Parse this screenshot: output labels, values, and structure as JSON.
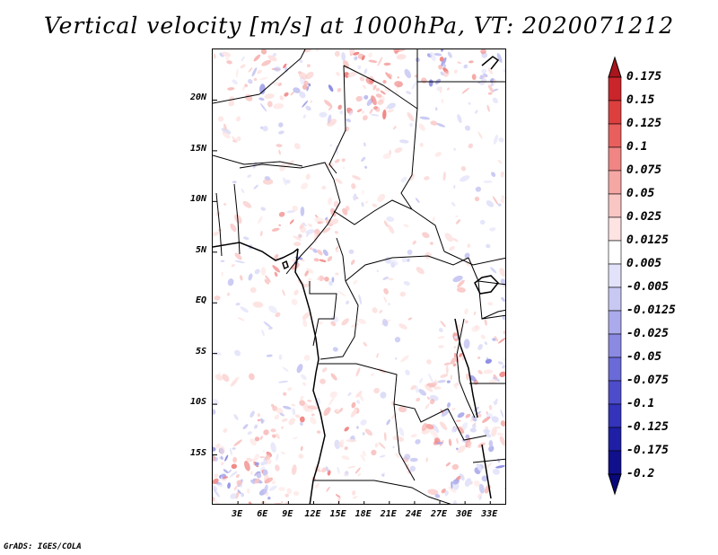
{
  "title": "Vertical velocity [m/s] at 1000hPa, VT: 2020071212",
  "footer": "GrADS: IGES/COLA",
  "map": {
    "lat_labels": [
      "20N",
      "15N",
      "10N",
      "5N",
      "EQ",
      "5S",
      "10S",
      "15S"
    ],
    "lon_labels": [
      "3E",
      "6E",
      "9E",
      "12E",
      "15E",
      "18E",
      "21E",
      "24E",
      "27E",
      "30E",
      "33E"
    ],
    "lon_range": [
      0,
      35
    ],
    "lat_range": [
      -20,
      25
    ]
  },
  "colorbar": {
    "labels": [
      "0.175",
      "0.15",
      "0.125",
      "0.1",
      "0.075",
      "0.05",
      "0.025",
      "0.0125",
      "0.005",
      "-0.005",
      "-0.0125",
      "-0.025",
      "-0.05",
      "-0.075",
      "-0.1",
      "-0.125",
      "-0.175",
      "-0.2"
    ],
    "colors": [
      "#a8151c",
      "#c9252b",
      "#dd3f3f",
      "#e85f5d",
      "#f08583",
      "#f5a7a4",
      "#f9c6c4",
      "#fde3e1",
      "#ffffff",
      "#e2e2fa",
      "#c8c8f3",
      "#aaaaec",
      "#8a8ae3",
      "#6a6ad8",
      "#4d4dcb",
      "#3333bb",
      "#1f1fa6",
      "#10108c",
      "#08087a"
    ],
    "top_color": "#a8151c",
    "bottom_color": "#08087a"
  }
}
